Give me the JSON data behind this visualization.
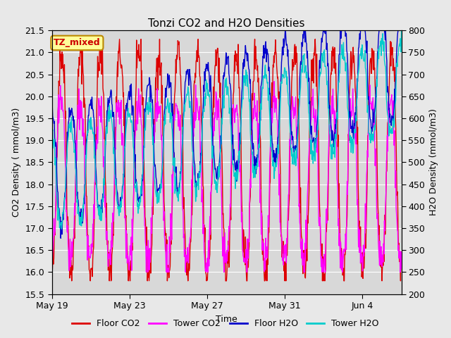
{
  "title": "Tonzi CO2 and H2O Densities",
  "xlabel": "Time",
  "ylabel_left": "CO2 Density ( mmol/m3)",
  "ylabel_right": "H2O Density (mmol/m3)",
  "ylim_left": [
    15.5,
    21.5
  ],
  "ylim_right": [
    200,
    800
  ],
  "yticks_left": [
    15.5,
    16.0,
    16.5,
    17.0,
    17.5,
    18.0,
    18.5,
    19.0,
    19.5,
    20.0,
    20.5,
    21.0,
    21.5
  ],
  "yticks_right": [
    200,
    250,
    300,
    350,
    400,
    450,
    500,
    550,
    600,
    650,
    700,
    750,
    800
  ],
  "xtick_labels": [
    "May 19",
    "May 23",
    "May 27",
    "May 31",
    "Jun 4"
  ],
  "xtick_positions": [
    0,
    4,
    8,
    12,
    16
  ],
  "n_days": 18,
  "samples_per_day": 48,
  "annotation_text": "TZ_mixed",
  "annotation_color": "#cc0000",
  "annotation_bg": "#ffff99",
  "annotation_border": "#bb8800",
  "colors": {
    "floor_co2": "#dd0000",
    "tower_co2": "#ff00ff",
    "floor_h2o": "#0000cc",
    "tower_h2o": "#00cccc"
  },
  "legend_labels": [
    "Floor CO2",
    "Tower CO2",
    "Floor H2O",
    "Tower H2O"
  ],
  "background_color": "#e8e8e8",
  "plot_bg": "#d8d8d8",
  "grid_color": "#ffffff",
  "title_fontsize": 11,
  "axis_fontsize": 9,
  "tick_fontsize": 9,
  "linewidth": 1.0
}
